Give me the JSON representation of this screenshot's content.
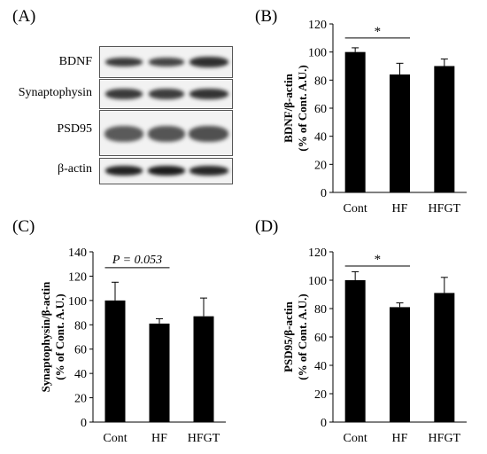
{
  "panels": {
    "a": "(A)",
    "b": "(B)",
    "c": "(C)",
    "d": "(D)"
  },
  "blot": {
    "rows": [
      "BDNF",
      "Synaptophysin",
      "PSD95",
      "β-actin"
    ]
  },
  "chart_data": [
    {
      "id": "B",
      "type": "bar",
      "categories": [
        "Cont",
        "HF",
        "HFGT"
      ],
      "values": [
        100,
        84,
        90
      ],
      "errors": [
        3,
        8,
        5
      ],
      "ylabel_lines": [
        "BDNF/β-actin",
        "(% of Cont. A.U.)"
      ],
      "ylim": [
        0,
        120
      ],
      "yticks": [
        0,
        20,
        40,
        60,
        80,
        100,
        120
      ],
      "annotation": {
        "from": "Cont",
        "to": "HF",
        "text": "*",
        "y": 110
      },
      "color": "#000000"
    },
    {
      "id": "C",
      "type": "bar",
      "categories": [
        "Cont",
        "HF",
        "HFGT"
      ],
      "values": [
        100,
        81,
        87
      ],
      "errors": [
        15,
        4,
        15
      ],
      "ylabel_lines": [
        "Synaptophysin/β-actin",
        "(% of Cont. A.U.)"
      ],
      "ylim": [
        0,
        140
      ],
      "yticks": [
        0,
        20,
        40,
        60,
        80,
        100,
        120,
        140
      ],
      "annotation": {
        "from": "Cont",
        "to": "HF",
        "text": "P = 0.053",
        "y": 127
      },
      "color": "#000000"
    },
    {
      "id": "D",
      "type": "bar",
      "categories": [
        "Cont",
        "HF",
        "HFGT"
      ],
      "values": [
        100,
        81,
        91
      ],
      "errors": [
        6,
        3,
        11
      ],
      "ylabel_lines": [
        "PSD95/β-actin",
        "(% of Cont. A.U.)"
      ],
      "ylim": [
        0,
        120
      ],
      "yticks": [
        0,
        20,
        40,
        60,
        80,
        100,
        120
      ],
      "annotation": {
        "from": "Cont",
        "to": "HF",
        "text": "*",
        "y": 110
      },
      "color": "#000000"
    }
  ]
}
